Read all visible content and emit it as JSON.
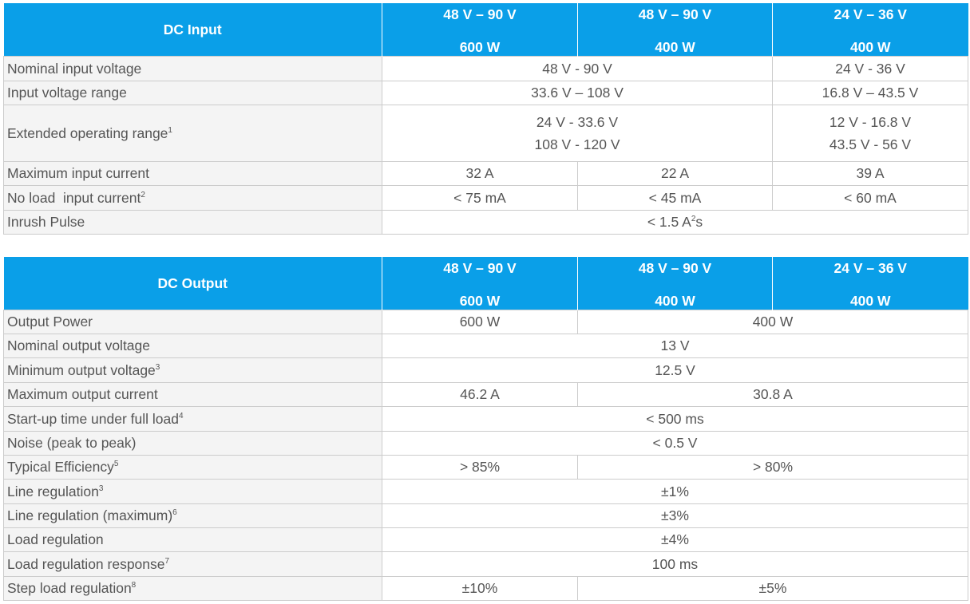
{
  "dc_input": {
    "title": "DC Input",
    "columns": [
      {
        "voltage": "48 V – 90 V",
        "power": "600 W"
      },
      {
        "voltage": "48 V – 90 V",
        "power": "400 W"
      },
      {
        "voltage": "24 V – 36 V",
        "power": "400 W"
      }
    ],
    "rows": [
      {
        "label": "Nominal input voltage",
        "v1": "48 V - 90 V",
        "v2": "24 V - 36 V"
      },
      {
        "label": "Input voltage range",
        "v1": "33.6 V – 108 V",
        "v2": "16.8 V – 43.5 V"
      },
      {
        "label": "Extended operating range",
        "sup": "1",
        "v1a": "24 V - 33.6 V",
        "v1b": "108 V - 120 V",
        "v2a": "12 V - 16.8 V",
        "v2b": "43.5 V - 56 V"
      },
      {
        "label": "Maximum input current",
        "v1": "32 A",
        "v2": "22 A",
        "v3": "39 A"
      },
      {
        "label": "No load  input current",
        "sup": "2",
        "v1": "< 75 mA",
        "v2": "< 45 mA",
        "v3": "< 60 mA"
      },
      {
        "label": "Inrush Pulse",
        "v_pre": "< 1.5 A",
        "v_sup": "2",
        "v_post": "s"
      }
    ]
  },
  "dc_output": {
    "title": "DC Output",
    "columns": [
      {
        "voltage": "48 V – 90 V",
        "power": "600 W"
      },
      {
        "voltage": "48 V – 90 V",
        "power": "400 W"
      },
      {
        "voltage": "24 V – 36 V",
        "power": "400 W"
      }
    ],
    "rows": [
      {
        "label": "Output Power",
        "v1": "600 W",
        "v2": "400 W"
      },
      {
        "label": "Nominal output voltage",
        "v": "13 V"
      },
      {
        "label": "Minimum output voltage",
        "sup": "3",
        "v": "12.5 V"
      },
      {
        "label": "Maximum output current",
        "v1": "46.2 A",
        "v2": "30.8 A"
      },
      {
        "label": "Start-up time under full load",
        "sup": "4",
        "v": "< 500 ms"
      },
      {
        "label": "Noise (peak to peak)",
        "v": "< 0.5 V"
      },
      {
        "label": "Typical Efficiency",
        "sup": "5",
        "v1": "> 85%",
        "v2": "> 80%"
      },
      {
        "label": "Line regulation",
        "sup": "3",
        "v": "±1%"
      },
      {
        "label": "Line regulation (maximum)",
        "sup": "6",
        "v": "±3%"
      },
      {
        "label": "Load regulation",
        "v": "±4%"
      },
      {
        "label": "Load regulation response",
        "sup": "7",
        "v": "100 ms"
      },
      {
        "label": "Step load regulation",
        "sup": "8",
        "v1": "±10%",
        "v2": "±5%"
      }
    ]
  },
  "colors": {
    "header_bg": "#0a9fe8",
    "label_bg": "#f4f4f4",
    "border": "#cccccc",
    "text": "#555555"
  }
}
